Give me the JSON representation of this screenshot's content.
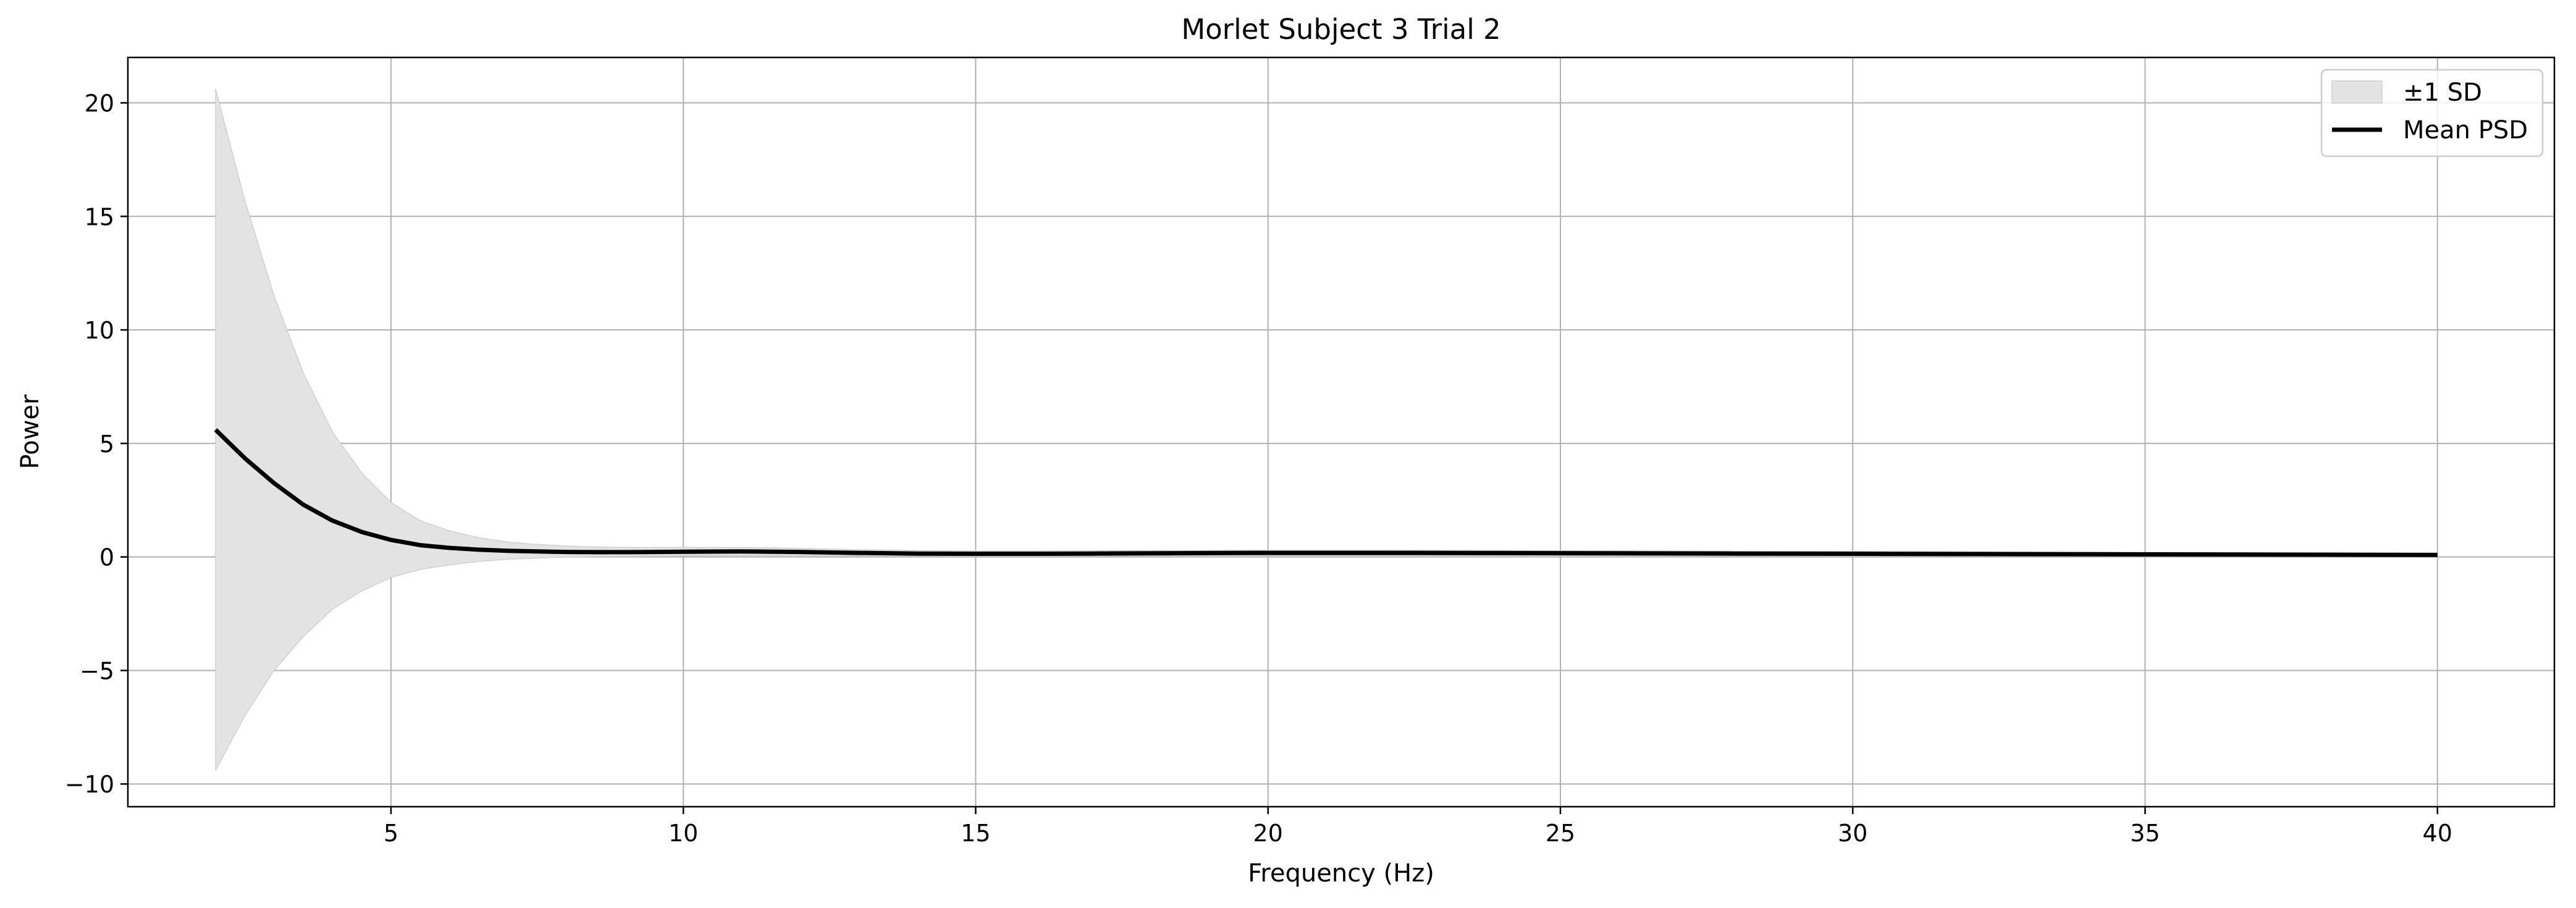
{
  "chart_data": {
    "type": "area",
    "title": "Morlet Subject 3 Trial 2",
    "xlabel": "Frequency (Hz)",
    "ylabel": "Power",
    "xlim": [
      0.5,
      42.0
    ],
    "ylim": [
      -11.0,
      22.0
    ],
    "xticks": [
      5,
      10,
      15,
      20,
      25,
      30,
      35,
      40
    ],
    "yticks": [
      -10,
      -5,
      0,
      5,
      10,
      15,
      20
    ],
    "grid": true,
    "legend_position": "top-right",
    "colors": {
      "band": "#e3e3e3",
      "band_edge": "#d0d0d0",
      "mean": "#000000",
      "grid": "#b0b0b0"
    },
    "x": [
      2.0,
      2.5,
      3.0,
      3.5,
      4.0,
      4.5,
      5.0,
      5.5,
      6.0,
      6.5,
      7.0,
      7.5,
      8.0,
      8.5,
      9.0,
      9.5,
      10.0,
      11.0,
      12.0,
      13.0,
      14.0,
      15.0,
      16.0,
      17.0,
      18.0,
      19.0,
      20.0,
      22.0,
      24.0,
      26.0,
      28.0,
      30.0,
      32.0,
      34.0,
      36.0,
      38.0,
      40.0
    ],
    "series": [
      {
        "name": "Mean PSD",
        "values": [
          5.6,
          4.35,
          3.25,
          2.3,
          1.6,
          1.1,
          0.75,
          0.52,
          0.4,
          0.32,
          0.27,
          0.24,
          0.22,
          0.21,
          0.21,
          0.22,
          0.23,
          0.24,
          0.22,
          0.18,
          0.15,
          0.14,
          0.14,
          0.15,
          0.16,
          0.17,
          0.18,
          0.18,
          0.17,
          0.16,
          0.15,
          0.14,
          0.13,
          0.12,
          0.11,
          0.1,
          0.09
        ]
      },
      {
        "name": "±1 SD",
        "lower": [
          -9.4,
          -7.0,
          -5.0,
          -3.5,
          -2.3,
          -1.5,
          -0.9,
          -0.55,
          -0.35,
          -0.2,
          -0.1,
          -0.05,
          0.0,
          0.02,
          0.03,
          0.04,
          0.05,
          0.06,
          0.06,
          0.05,
          0.04,
          0.04,
          0.04,
          0.05,
          0.05,
          0.06,
          0.06,
          0.06,
          0.06,
          0.06,
          0.05,
          0.05,
          0.05,
          0.04,
          0.04,
          0.04,
          0.03
        ],
        "upper": [
          20.6,
          15.7,
          11.5,
          8.1,
          5.5,
          3.7,
          2.4,
          1.6,
          1.15,
          0.85,
          0.65,
          0.55,
          0.48,
          0.44,
          0.42,
          0.42,
          0.42,
          0.42,
          0.38,
          0.32,
          0.28,
          0.26,
          0.26,
          0.27,
          0.28,
          0.29,
          0.3,
          0.3,
          0.29,
          0.27,
          0.25,
          0.24,
          0.22,
          0.2,
          0.19,
          0.17,
          0.16
        ]
      }
    ]
  }
}
